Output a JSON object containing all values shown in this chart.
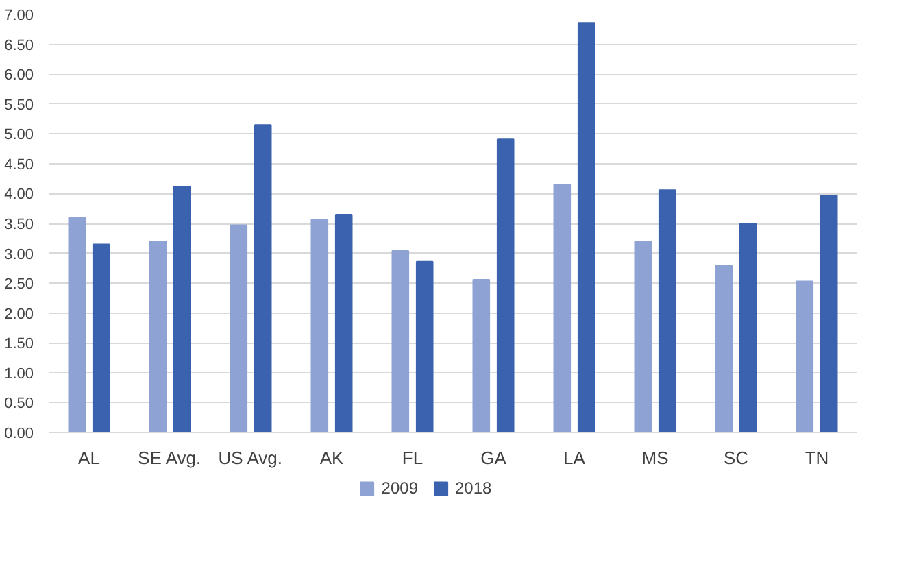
{
  "chart_data": {
    "type": "bar",
    "categories": [
      "AL",
      "SE Avg.",
      "US Avg.",
      "AK",
      "FL",
      "GA",
      "LA",
      "MS",
      "SC",
      "TN"
    ],
    "series": [
      {
        "name": "2009",
        "color": "#8fa2d4",
        "values": [
          3.6,
          3.2,
          3.47,
          3.57,
          3.04,
          2.56,
          4.15,
          3.2,
          2.79,
          2.53
        ]
      },
      {
        "name": "2018",
        "color": "#3a62ae",
        "values": [
          3.15,
          4.12,
          5.15,
          3.65,
          2.86,
          4.91,
          6.86,
          4.06,
          3.5,
          3.97
        ]
      }
    ],
    "ylim": [
      0,
      7
    ],
    "yticks": [
      {
        "value": 0,
        "label": "0.00"
      },
      {
        "value": 0.5,
        "label": "0.50"
      },
      {
        "value": 1,
        "label": "1.00"
      },
      {
        "value": 1.5,
        "label": "1.50"
      },
      {
        "value": 2,
        "label": "2.00"
      },
      {
        "value": 2.5,
        "label": "2.50"
      },
      {
        "value": 3,
        "label": "3.00"
      },
      {
        "value": 3.5,
        "label": "3.50"
      },
      {
        "value": 4,
        "label": "4.00"
      },
      {
        "value": 4.5,
        "label": "4.50"
      },
      {
        "value": 5,
        "label": "5.00"
      },
      {
        "value": 5.5,
        "label": "5.50"
      },
      {
        "value": 6,
        "label": "6.00"
      },
      {
        "value": 6.5,
        "label": "6.50"
      },
      {
        "value": 7,
        "label": "7.00"
      }
    ],
    "grid": "y",
    "legend": "bottom"
  }
}
